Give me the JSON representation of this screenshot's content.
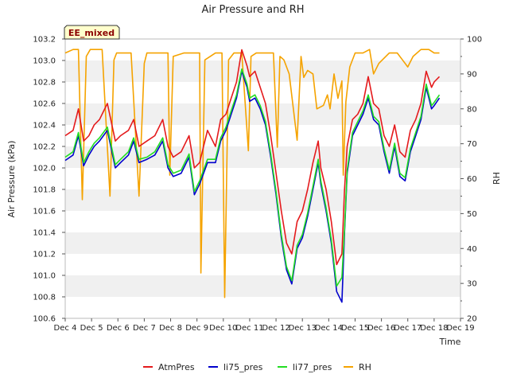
{
  "chart_data": {
    "type": "line",
    "title": "Air Pressure and RH",
    "xlabel": "Time",
    "ylabel_left": "Air Pressure (kPa)",
    "ylabel_right": "RH",
    "annotation": "EE_mixed",
    "xlim": [
      0,
      15
    ],
    "ylim_left": [
      100.6,
      103.2
    ],
    "ylim_right": [
      20,
      100
    ],
    "x_ticks": [
      {
        "x": 0,
        "label": "Dec 4"
      },
      {
        "x": 1,
        "label": "Dec 5"
      },
      {
        "x": 2,
        "label": "Dec 6"
      },
      {
        "x": 3,
        "label": "Dec 7"
      },
      {
        "x": 4,
        "label": "Dec 8"
      },
      {
        "x": 5,
        "label": "Dec 9"
      },
      {
        "x": 6,
        "label": "Dec 10"
      },
      {
        "x": 7,
        "label": "Dec 11"
      },
      {
        "x": 8,
        "label": "Dec 12"
      },
      {
        "x": 9,
        "label": "Dec 13"
      },
      {
        "x": 10,
        "label": "Dec 14"
      },
      {
        "x": 11,
        "label": "Dec 15"
      },
      {
        "x": 12,
        "label": "Dec 16"
      },
      {
        "x": 13,
        "label": "Dec 17"
      },
      {
        "x": 14,
        "label": "Dec 18"
      },
      {
        "x": 15,
        "label": "Dec 19"
      }
    ],
    "y_ticks_left": [
      "100.6",
      "100.8",
      "101.0",
      "101.2",
      "101.4",
      "101.6",
      "101.8",
      "102.0",
      "102.2",
      "102.4",
      "102.6",
      "102.8",
      "103.0",
      "103.2"
    ],
    "y_ticks_right": [
      "20",
      "30",
      "40",
      "50",
      "60",
      "70",
      "80",
      "90",
      "100"
    ],
    "legend": [
      {
        "name": "AtmPres",
        "color": "#e41a1c"
      },
      {
        "name": "li75_pres",
        "color": "#0000cc"
      },
      {
        "name": "li77_pres",
        "color": "#22dd22"
      },
      {
        "name": "RH",
        "color": "#f5a300"
      }
    ],
    "series": [
      {
        "name": "AtmPres",
        "axis": "left",
        "color": "#e41a1c",
        "x": [
          0.0,
          0.3,
          0.5,
          0.7,
          0.9,
          1.1,
          1.3,
          1.6,
          1.9,
          2.1,
          2.4,
          2.6,
          2.8,
          3.1,
          3.4,
          3.7,
          3.9,
          4.1,
          4.4,
          4.7,
          4.9,
          5.1,
          5.4,
          5.7,
          5.9,
          6.1,
          6.3,
          6.5,
          6.7,
          6.9,
          7.0,
          7.2,
          7.4,
          7.6,
          7.8,
          8.0,
          8.2,
          8.4,
          8.6,
          8.8,
          9.0,
          9.2,
          9.4,
          9.6,
          9.7,
          9.9,
          10.1,
          10.3,
          10.5,
          10.6,
          10.7,
          10.9,
          11.1,
          11.3,
          11.5,
          11.7,
          11.9,
          12.1,
          12.3,
          12.5,
          12.7,
          12.9,
          13.1,
          13.3,
          13.5,
          13.7,
          13.9,
          14.0,
          14.2
        ],
        "y": [
          102.3,
          102.35,
          102.55,
          102.25,
          102.3,
          102.4,
          102.45,
          102.6,
          102.25,
          102.3,
          102.35,
          102.45,
          102.2,
          102.25,
          102.3,
          102.45,
          102.2,
          102.1,
          102.15,
          102.3,
          102.0,
          102.05,
          102.35,
          102.2,
          102.45,
          102.5,
          102.65,
          102.8,
          103.1,
          102.95,
          102.85,
          102.9,
          102.75,
          102.6,
          102.3,
          101.95,
          101.6,
          101.3,
          101.2,
          101.5,
          101.6,
          101.8,
          102.05,
          102.25,
          102.0,
          101.8,
          101.5,
          101.1,
          101.2,
          101.8,
          102.2,
          102.45,
          102.5,
          102.6,
          102.85,
          102.6,
          102.55,
          102.3,
          102.2,
          102.4,
          102.15,
          102.1,
          102.35,
          102.45,
          102.6,
          102.9,
          102.75,
          102.8,
          102.85
        ]
      },
      {
        "name": "li75_pres",
        "axis": "left",
        "color": "#0000cc",
        "x": [
          0.0,
          0.3,
          0.5,
          0.7,
          0.9,
          1.1,
          1.3,
          1.6,
          1.9,
          2.1,
          2.4,
          2.6,
          2.8,
          3.1,
          3.4,
          3.7,
          3.9,
          4.1,
          4.4,
          4.7,
          4.9,
          5.1,
          5.4,
          5.7,
          5.9,
          6.1,
          6.3,
          6.5,
          6.7,
          6.9,
          7.0,
          7.2,
          7.4,
          7.6,
          7.8,
          8.0,
          8.2,
          8.4,
          8.6,
          8.8,
          9.0,
          9.2,
          9.4,
          9.6,
          9.7,
          9.9,
          10.1,
          10.3,
          10.5,
          10.6,
          10.7,
          10.9,
          11.1,
          11.3,
          11.5,
          11.7,
          11.9,
          12.1,
          12.3,
          12.5,
          12.7,
          12.9,
          13.1,
          13.3,
          13.5,
          13.7,
          13.9,
          14.0,
          14.2
        ],
        "y": [
          102.07,
          102.12,
          102.3,
          102.02,
          102.12,
          102.2,
          102.25,
          102.35,
          102.0,
          102.05,
          102.12,
          102.25,
          102.05,
          102.08,
          102.12,
          102.25,
          102.0,
          101.92,
          101.95,
          102.1,
          101.75,
          101.85,
          102.05,
          102.05,
          102.25,
          102.35,
          102.5,
          102.65,
          102.9,
          102.75,
          102.62,
          102.65,
          102.55,
          102.4,
          102.1,
          101.75,
          101.35,
          101.05,
          100.92,
          101.25,
          101.35,
          101.55,
          101.8,
          102.05,
          101.85,
          101.6,
          101.3,
          100.85,
          100.75,
          101.4,
          101.95,
          102.3,
          102.4,
          102.5,
          102.65,
          102.45,
          102.4,
          102.15,
          101.95,
          102.2,
          101.92,
          101.88,
          102.15,
          102.3,
          102.45,
          102.75,
          102.55,
          102.58,
          102.65
        ]
      },
      {
        "name": "li77_pres",
        "axis": "left",
        "color": "#22dd22",
        "x": [
          0.0,
          0.3,
          0.5,
          0.7,
          0.9,
          1.1,
          1.3,
          1.6,
          1.9,
          2.1,
          2.4,
          2.6,
          2.8,
          3.1,
          3.4,
          3.7,
          3.9,
          4.1,
          4.4,
          4.7,
          4.9,
          5.1,
          5.4,
          5.7,
          5.9,
          6.1,
          6.3,
          6.5,
          6.7,
          6.9,
          7.0,
          7.2,
          7.4,
          7.6,
          7.8,
          8.0,
          8.2,
          8.4,
          8.6,
          8.8,
          9.0,
          9.2,
          9.4,
          9.6,
          9.7,
          9.9,
          10.1,
          10.3,
          10.5,
          10.6,
          10.7,
          10.9,
          11.1,
          11.3,
          11.5,
          11.7,
          11.9,
          12.1,
          12.3,
          12.5,
          12.7,
          12.9,
          13.1,
          13.3,
          13.5,
          13.7,
          13.9,
          14.0,
          14.2
        ],
        "y": [
          102.1,
          102.15,
          102.33,
          102.05,
          102.15,
          102.23,
          102.28,
          102.38,
          102.03,
          102.08,
          102.15,
          102.28,
          102.08,
          102.1,
          102.15,
          102.28,
          102.03,
          101.95,
          101.98,
          102.13,
          101.78,
          101.88,
          102.08,
          102.08,
          102.28,
          102.38,
          102.53,
          102.68,
          102.92,
          102.78,
          102.65,
          102.68,
          102.58,
          102.43,
          102.13,
          101.78,
          101.38,
          101.08,
          100.95,
          101.28,
          101.38,
          101.58,
          101.83,
          102.08,
          101.88,
          101.63,
          101.33,
          100.9,
          100.98,
          101.43,
          101.98,
          102.33,
          102.43,
          102.53,
          102.68,
          102.48,
          102.43,
          102.18,
          101.98,
          102.23,
          101.95,
          101.91,
          102.18,
          102.33,
          102.48,
          102.78,
          102.58,
          102.61,
          102.68
        ]
      },
      {
        "name": "RH",
        "axis": "right",
        "color": "#f5a300",
        "x": [
          0.0,
          0.3,
          0.5,
          0.65,
          0.8,
          0.95,
          1.05,
          1.4,
          1.7,
          1.85,
          1.95,
          2.1,
          2.5,
          2.8,
          3.0,
          3.1,
          3.3,
          3.6,
          3.9,
          3.97,
          4.1,
          4.5,
          4.9,
          5.1,
          5.15,
          5.3,
          5.7,
          5.95,
          6.05,
          6.2,
          6.4,
          6.7,
          6.95,
          7.05,
          7.25,
          7.6,
          7.9,
          8.05,
          8.15,
          8.3,
          8.5,
          8.8,
          8.95,
          9.05,
          9.2,
          9.4,
          9.55,
          9.8,
          9.95,
          10.05,
          10.2,
          10.35,
          10.5,
          10.55,
          10.65,
          10.8,
          11.0,
          11.3,
          11.55,
          11.7,
          11.9,
          12.3,
          12.6,
          12.8,
          13.0,
          13.2,
          13.5,
          13.8,
          14.0,
          14.2
        ],
        "y": [
          96,
          97,
          97,
          54,
          95,
          97,
          97,
          97,
          55,
          94,
          96,
          96,
          96,
          55,
          93,
          96,
          96,
          96,
          96,
          61,
          95,
          96,
          96,
          96,
          33,
          94,
          96,
          96,
          26,
          94,
          96,
          96,
          68,
          95,
          96,
          96,
          96,
          69,
          95,
          94,
          90,
          71,
          95,
          89,
          91,
          90,
          80,
          81,
          84,
          80,
          90,
          83,
          88,
          61,
          82,
          92,
          96,
          96,
          97,
          90,
          93,
          96,
          96,
          94,
          92,
          95,
          97,
          97,
          96,
          96
        ]
      }
    ]
  }
}
